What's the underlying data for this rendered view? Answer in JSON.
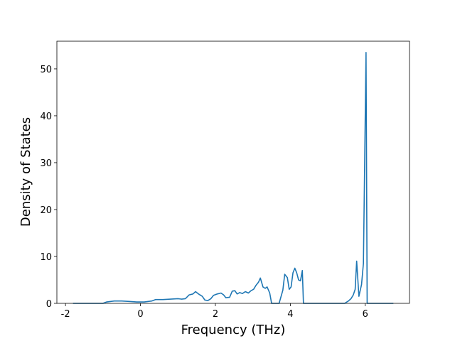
{
  "chart_data": {
    "type": "line",
    "xlabel": "Frequency (THz)",
    "ylabel": "Density of States",
    "color": "#1f77b4",
    "xlim": [
      -2.23,
      7.18
    ],
    "ylim": [
      0,
      55.9
    ],
    "xticks": [
      -2,
      0,
      2,
      4,
      6
    ],
    "yticks": [
      0,
      10,
      20,
      30,
      40,
      50
    ],
    "x": [
      -1.8,
      -1.0,
      -0.9,
      -0.7,
      -0.5,
      -0.3,
      -0.1,
      0.1,
      0.3,
      0.4,
      0.6,
      0.8,
      1.0,
      1.1,
      1.2,
      1.3,
      1.4,
      1.47,
      1.55,
      1.65,
      1.72,
      1.8,
      1.88,
      1.95,
      2.05,
      2.15,
      2.22,
      2.28,
      2.38,
      2.45,
      2.52,
      2.58,
      2.65,
      2.72,
      2.8,
      2.88,
      2.95,
      3.02,
      3.08,
      3.15,
      3.2,
      3.27,
      3.33,
      3.38,
      3.45,
      3.5,
      3.7,
      3.8,
      3.85,
      3.92,
      3.97,
      4.02,
      4.07,
      4.12,
      4.17,
      4.22,
      4.27,
      4.32,
      4.35,
      5.45,
      5.55,
      5.62,
      5.68,
      5.73,
      5.77,
      5.83,
      5.9,
      5.95,
      6.02,
      6.05,
      6.75
    ],
    "values": [
      0,
      0,
      0.3,
      0.5,
      0.5,
      0.4,
      0.3,
      0.3,
      0.5,
      0.8,
      0.8,
      0.9,
      1.0,
      0.9,
      1.0,
      1.8,
      2.0,
      2.5,
      2.0,
      1.5,
      0.7,
      0.6,
      1.0,
      1.7,
      2.0,
      2.2,
      1.8,
      1.2,
      1.3,
      2.6,
      2.7,
      2.0,
      2.3,
      2.1,
      2.5,
      2.2,
      2.7,
      3.0,
      3.8,
      4.5,
      5.4,
      3.5,
      3.2,
      3.5,
      2.2,
      0,
      0,
      2.8,
      6.2,
      5.5,
      3.0,
      3.5,
      6.5,
      7.5,
      6.5,
      5.0,
      4.8,
      7.0,
      0,
      0,
      0.5,
      1.0,
      1.8,
      3.0,
      9.0,
      1.5,
      4.0,
      8.5,
      53.5,
      0,
      0
    ]
  }
}
